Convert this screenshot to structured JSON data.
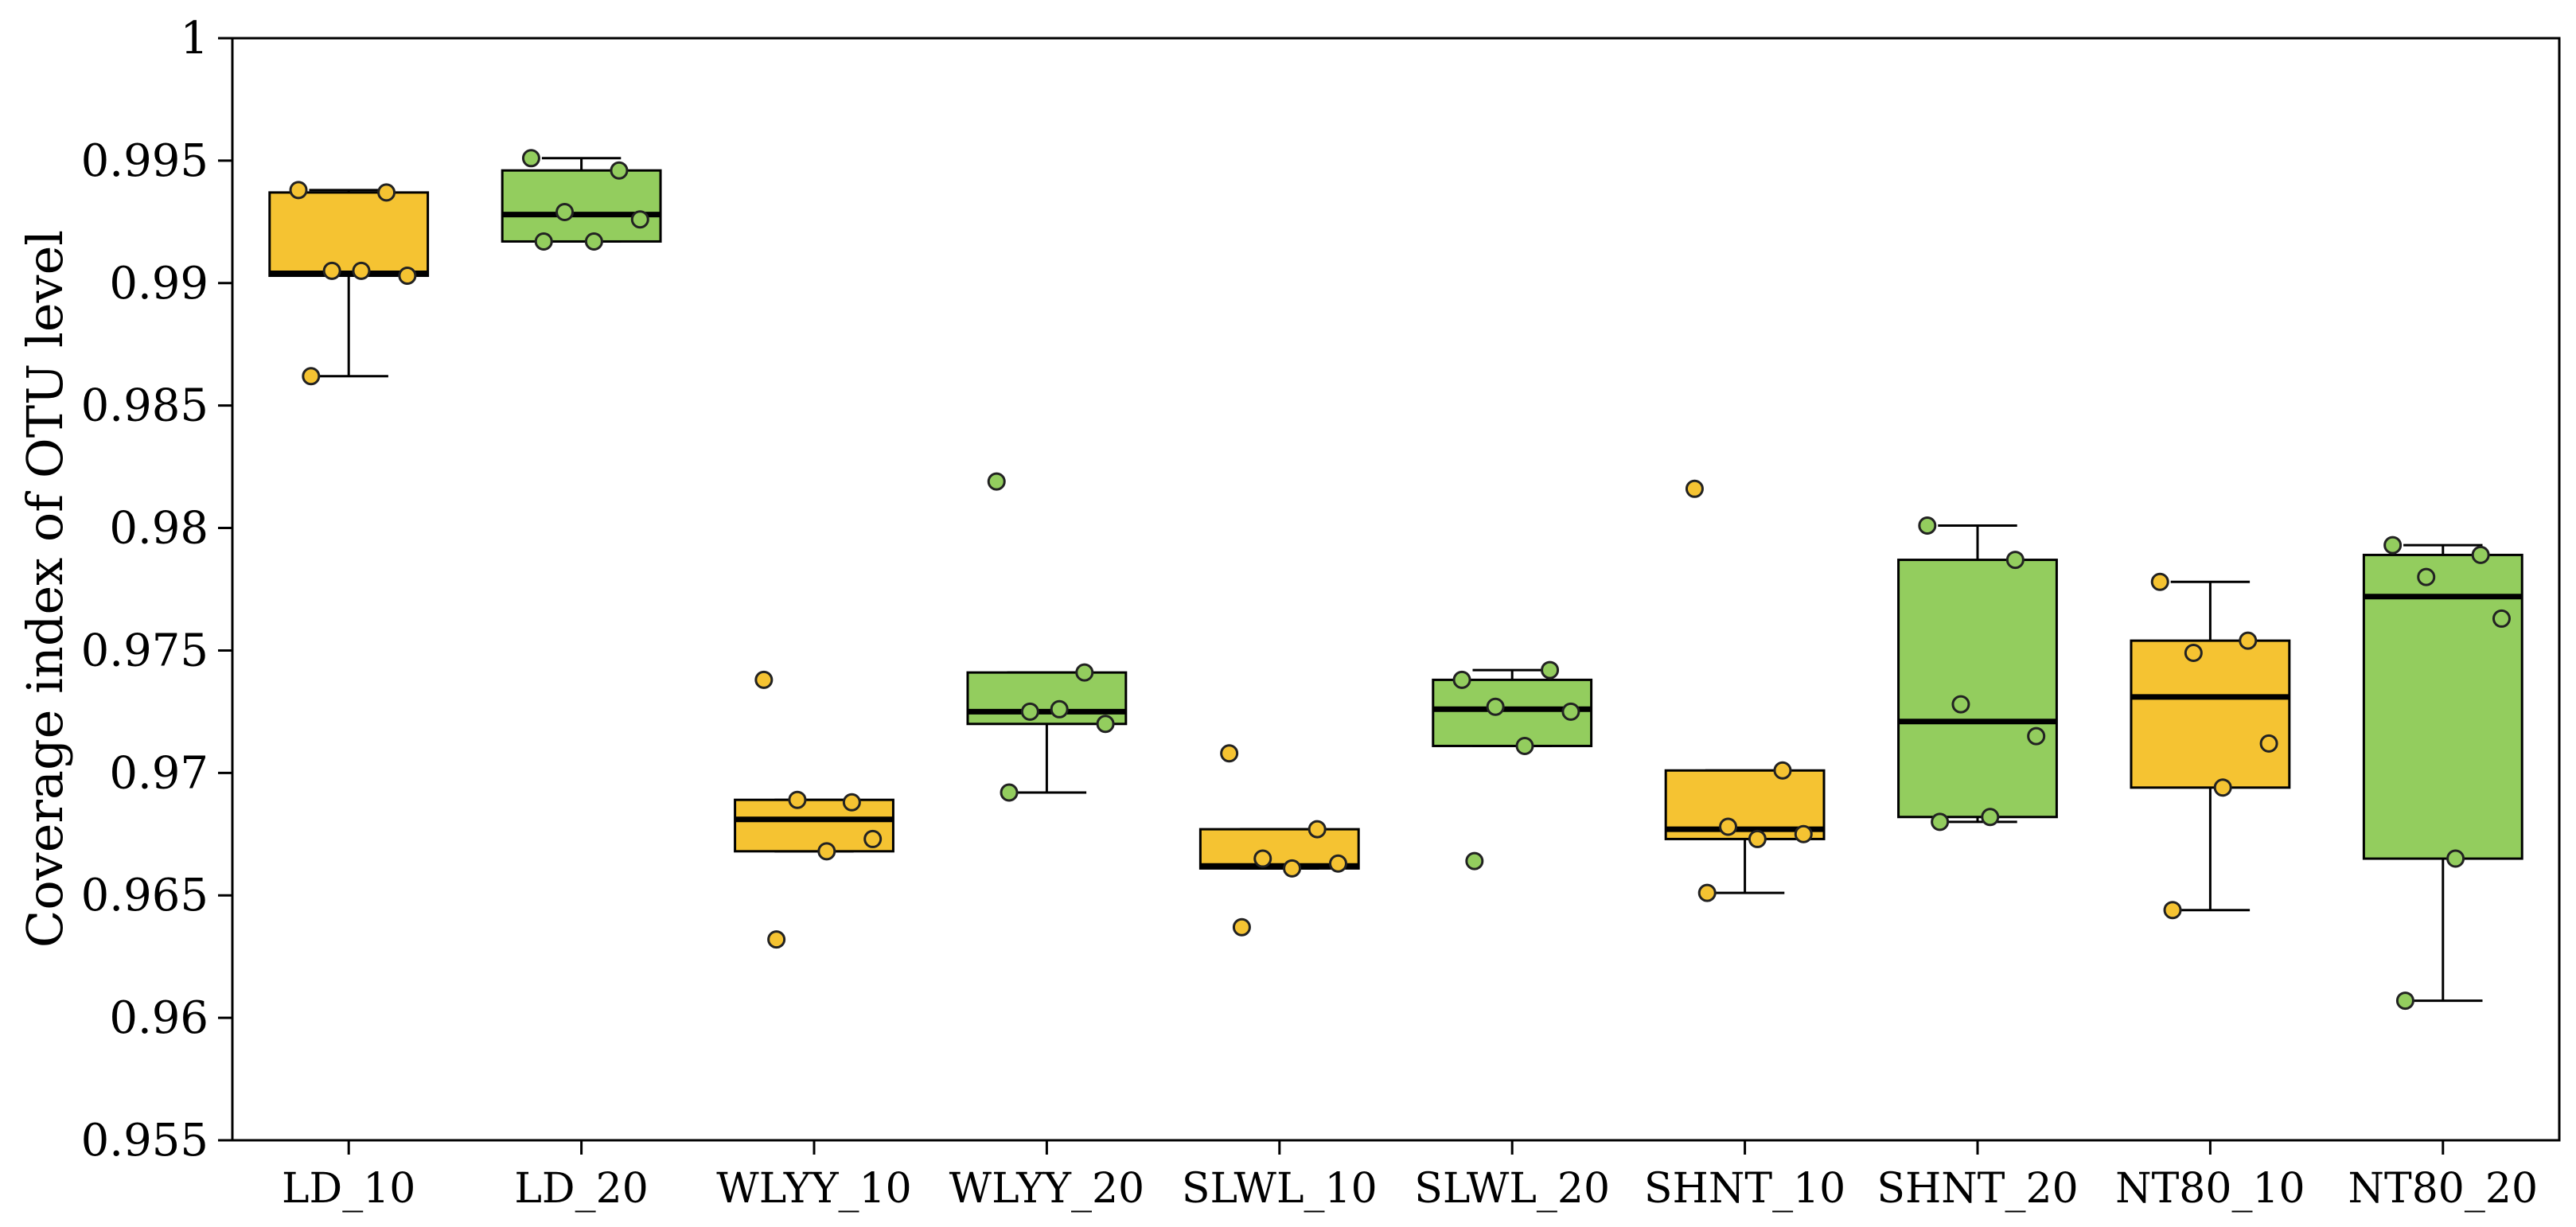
{
  "chart_data": {
    "type": "box",
    "xlabel": "",
    "ylabel": "Coverage index of OTU level",
    "ylim": [
      0.955,
      1
    ],
    "yticks": [
      "0.955",
      "0.96",
      "0.965",
      "0.97",
      "0.975",
      "0.98",
      "0.985",
      "0.99",
      "0.995",
      "1"
    ],
    "categories": [
      "LD_10",
      "LD_20",
      "WLYY_10",
      "WLYY_20",
      "SLWL_10",
      "SLWL_20",
      "SHNT_10",
      "SHNT_20",
      "NT80_10",
      "NT80_20"
    ],
    "colors": {
      "depth_10": "#F5C332",
      "depth_20": "#93CD5E",
      "outline": "#000000"
    },
    "boxes": [
      {
        "category": "LD_10",
        "fill": "#F5C332",
        "whisker_low": 0.9862,
        "q1": 0.9903,
        "median": 0.9904,
        "q3": 0.9937,
        "whisker_high": 0.9938,
        "points": [
          0.9938,
          0.9937,
          0.9905,
          0.9903,
          0.9905,
          0.9862
        ]
      },
      {
        "category": "LD_20",
        "fill": "#93CD5E",
        "whisker_low": 0.9917,
        "q1": 0.9917,
        "median": 0.9928,
        "q3": 0.9946,
        "whisker_high": 0.9951,
        "points": [
          0.9951,
          0.9946,
          0.9929,
          0.9926,
          0.9917,
          0.9917
        ]
      },
      {
        "category": "WLYY_10",
        "fill": "#F5C332",
        "whisker_low": 0.9668,
        "q1": 0.9668,
        "median": 0.9681,
        "q3": 0.9689,
        "whisker_high": 0.9689,
        "points": [
          0.9738,
          0.9688,
          0.9689,
          0.9673,
          0.9668,
          0.9632
        ]
      },
      {
        "category": "WLYY_20",
        "fill": "#93CD5E",
        "whisker_low": 0.9692,
        "q1": 0.972,
        "median": 0.9725,
        "q3": 0.9741,
        "whisker_high": 0.9741,
        "points": [
          0.9819,
          0.9741,
          0.9725,
          0.972,
          0.9726,
          0.9692
        ]
      },
      {
        "category": "SLWL_10",
        "fill": "#F5C332",
        "whisker_low": 0.9661,
        "q1": 0.9661,
        "median": 0.9662,
        "q3": 0.9677,
        "whisker_high": 0.9677,
        "points": [
          0.9708,
          0.9677,
          0.9665,
          0.9663,
          0.9661,
          0.9637
        ]
      },
      {
        "category": "SLWL_20",
        "fill": "#93CD5E",
        "whisker_low": 0.9711,
        "q1": 0.9711,
        "median": 0.9726,
        "q3": 0.9738,
        "whisker_high": 0.9742,
        "points": [
          0.9738,
          0.9742,
          0.9727,
          0.9725,
          0.9711,
          0.9664
        ]
      },
      {
        "category": "SHNT_10",
        "fill": "#F5C332",
        "whisker_low": 0.9651,
        "q1": 0.9673,
        "median": 0.9677,
        "q3": 0.9701,
        "whisker_high": 0.9701,
        "points": [
          0.9816,
          0.9701,
          0.9678,
          0.9675,
          0.9673,
          0.9651
        ]
      },
      {
        "category": "SHNT_20",
        "fill": "#93CD5E",
        "whisker_low": 0.968,
        "q1": 0.9682,
        "median": 0.9721,
        "q3": 0.9787,
        "whisker_high": 0.9801,
        "points": [
          0.9801,
          0.9787,
          0.9728,
          0.9715,
          0.9682,
          0.968
        ]
      },
      {
        "category": "NT80_10",
        "fill": "#F5C332",
        "whisker_low": 0.9644,
        "q1": 0.9694,
        "median": 0.9731,
        "q3": 0.9754,
        "whisker_high": 0.9778,
        "points": [
          0.9778,
          0.9754,
          0.9749,
          0.9712,
          0.9694,
          0.9644
        ]
      },
      {
        "category": "NT80_20",
        "fill": "#93CD5E",
        "whisker_low": 0.9607,
        "q1": 0.9665,
        "median": 0.9772,
        "q3": 0.9789,
        "whisker_high": 0.9793,
        "points": [
          0.9793,
          0.9789,
          0.978,
          0.9763,
          0.9665,
          0.9607
        ]
      }
    ],
    "grid": false,
    "legend": "none"
  }
}
